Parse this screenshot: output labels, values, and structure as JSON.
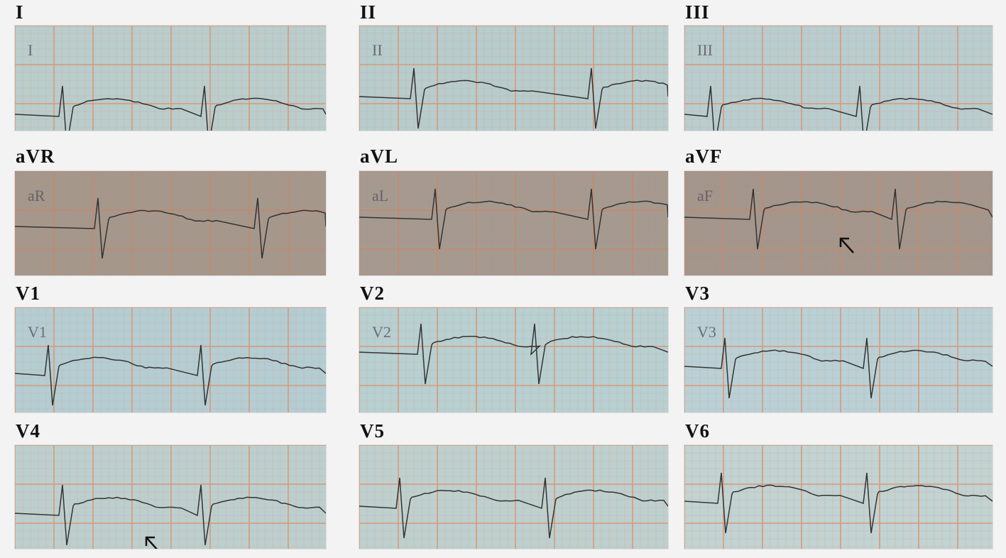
{
  "leads": [
    {
      "label": "I",
      "handwritten": "I",
      "paper": "#b9cdcc",
      "grid": "#d99a7a"
    },
    {
      "label": "II",
      "handwritten": "II",
      "paper": "#b6cccd",
      "grid": "#d99a7a"
    },
    {
      "label": "III",
      "handwritten": "III",
      "paper": "#b8cdcf",
      "grid": "#d99a7a"
    },
    {
      "label": "aVR",
      "handwritten": "aR",
      "paper": "#a4978c",
      "grid": "#c48a70"
    },
    {
      "label": "aVL",
      "handwritten": "aL",
      "paper": "#a59a90",
      "grid": "#c48a70"
    },
    {
      "label": "aVF",
      "handwritten": "aF",
      "paper": "#a3968c",
      "grid": "#c48a70",
      "arrow": true
    },
    {
      "label": "V1",
      "handwritten": "V1",
      "paper": "#b3cdd3",
      "grid": "#d99a7a"
    },
    {
      "label": "V2",
      "handwritten": "V2",
      "paper": "#b7d0d2",
      "grid": "#d99a7a"
    },
    {
      "label": "V3",
      "handwritten": "V3",
      "paper": "#b9d1d6",
      "grid": "#d99a7a"
    },
    {
      "label": "V4",
      "handwritten": "",
      "paper": "#bccfcf",
      "grid": "#d99a7a",
      "arrow": true
    },
    {
      "label": "V5",
      "handwritten": "",
      "paper": "#bdd0cf",
      "grid": "#d99a7a"
    },
    {
      "label": "V6",
      "handwritten": "",
      "paper": "#c1d3d3",
      "grid": "#d99a7a"
    }
  ]
}
